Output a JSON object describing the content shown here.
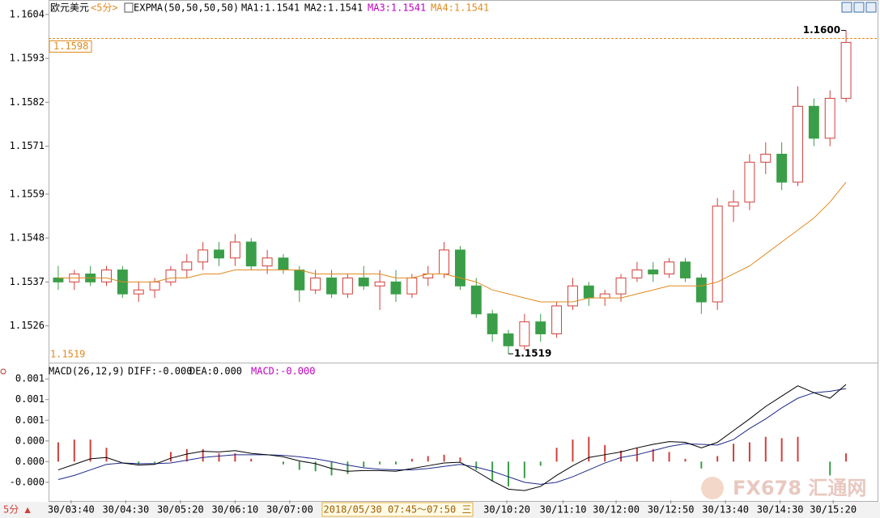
{
  "chart_data": [
    {
      "type": "candlestick",
      "title": "欧元美元",
      "period": "<5分>",
      "indicator": "EXPMA(50,50,50,50)",
      "ma_labels": [
        "MA1:1.1541",
        "MA2:1.1541",
        "MA3:1.1541",
        "MA4:1.1541"
      ],
      "ma_colors": [
        "#000000",
        "#000000",
        "#c000c0",
        "#e08a1e"
      ],
      "up_color": "#d0403a",
      "down_color": "#3a9e48",
      "expma_color": "#e08a1e",
      "xlim": [
        0,
        50
      ],
      "ylim": [
        1.1517,
        1.1606
      ],
      "yticks": [
        1.1604,
        1.1593,
        1.1582,
        1.1571,
        1.1559,
        1.1548,
        1.1537,
        1.1526
      ],
      "last_price": 1.1598,
      "range_low": 1.1519,
      "high_marker": {
        "value": 1.16,
        "label": "1.1600"
      },
      "low_marker": 1.1519,
      "open": [
        1.1538,
        1.1537,
        1.1539,
        1.1537,
        1.154,
        1.1534,
        1.1535,
        1.1537,
        1.154,
        1.1542,
        1.1545,
        1.1543,
        1.1547,
        1.1541,
        1.1543,
        1.154,
        1.1535,
        1.1538,
        1.1534,
        1.1538,
        1.1536,
        1.1537,
        1.1534,
        1.1538,
        1.1539,
        1.1545,
        1.1536,
        1.1529,
        1.1524,
        1.1521,
        1.1527,
        1.1524,
        1.1531,
        1.1536,
        1.1533,
        1.1534,
        1.1538,
        1.154,
        1.1539,
        1.1542,
        1.1538,
        1.1532,
        1.1556,
        1.1557,
        1.1567,
        1.1569,
        1.1562,
        1.1581,
        1.1573,
        1.1583
      ],
      "high": [
        1.1541,
        1.154,
        1.1541,
        1.1541,
        1.1541,
        1.1537,
        1.1538,
        1.1541,
        1.1544,
        1.1547,
        1.1547,
        1.1549,
        1.1548,
        1.1545,
        1.1544,
        1.1541,
        1.154,
        1.154,
        1.1539,
        1.1541,
        1.154,
        1.154,
        1.1539,
        1.1541,
        1.1547,
        1.1546,
        1.1538,
        1.153,
        1.1525,
        1.1529,
        1.1529,
        1.1532,
        1.1538,
        1.1537,
        1.1535,
        1.1539,
        1.1542,
        1.1542,
        1.1543,
        1.1543,
        1.1539,
        1.1558,
        1.156,
        1.1569,
        1.1572,
        1.1572,
        1.1586,
        1.1583,
        1.1585,
        1.16
      ],
      "low": [
        1.1535,
        1.1535,
        1.1536,
        1.1536,
        1.1533,
        1.1532,
        1.1533,
        1.1536,
        1.1538,
        1.154,
        1.1541,
        1.1541,
        1.154,
        1.1539,
        1.1539,
        1.1532,
        1.1534,
        1.1533,
        1.1533,
        1.1535,
        1.153,
        1.1532,
        1.1533,
        1.1536,
        1.1538,
        1.1535,
        1.1528,
        1.1522,
        1.1519,
        1.152,
        1.1522,
        1.1523,
        1.153,
        1.1531,
        1.1531,
        1.1532,
        1.1537,
        1.1537,
        1.1538,
        1.1537,
        1.1529,
        1.153,
        1.1552,
        1.1555,
        1.1564,
        1.156,
        1.1561,
        1.1571,
        1.1571,
        1.1582
      ],
      "close": [
        1.1537,
        1.1539,
        1.1537,
        1.154,
        1.1534,
        1.1535,
        1.1537,
        1.154,
        1.1542,
        1.1545,
        1.1543,
        1.1547,
        1.1541,
        1.1543,
        1.154,
        1.1535,
        1.1538,
        1.1534,
        1.1538,
        1.1536,
        1.1537,
        1.1534,
        1.1538,
        1.1539,
        1.1545,
        1.1536,
        1.1529,
        1.1524,
        1.1521,
        1.1527,
        1.1524,
        1.1531,
        1.1536,
        1.1533,
        1.1534,
        1.1538,
        1.154,
        1.1539,
        1.1542,
        1.1538,
        1.1532,
        1.1556,
        1.1557,
        1.1567,
        1.1569,
        1.1562,
        1.1581,
        1.1573,
        1.1583,
        1.1597
      ],
      "expma": [
        1.1538,
        1.1538,
        1.1538,
        1.1538,
        1.1537,
        1.1537,
        1.1537,
        1.1538,
        1.1538,
        1.1539,
        1.1539,
        1.154,
        1.154,
        1.154,
        1.154,
        1.154,
        1.1539,
        1.1539,
        1.1539,
        1.1539,
        1.1539,
        1.1538,
        1.1538,
        1.1539,
        1.1539,
        1.1538,
        1.1537,
        1.1535,
        1.1534,
        1.1533,
        1.1532,
        1.1532,
        1.1532,
        1.1533,
        1.1533,
        1.1533,
        1.1534,
        1.1535,
        1.1536,
        1.1536,
        1.1536,
        1.1537,
        1.1539,
        1.1541,
        1.1544,
        1.1547,
        1.155,
        1.1553,
        1.1557,
        1.1562
      ]
    },
    {
      "type": "macd",
      "title": "MACD(26,12,9)",
      "readouts": [
        "DIFF:-0.000",
        "DEA:0.000",
        "MACD:-0.000"
      ],
      "readout_colors": [
        "#000000",
        "#000000",
        "#c000c0"
      ],
      "diff_color": "#000000",
      "dea_color": "#1f2a8a",
      "up_color": "#d0403a",
      "down_color": "#3a9e48",
      "xlim": [
        0,
        50
      ],
      "ylim": [
        -0.00056,
        0.00139
      ],
      "yticks": [
        {
          "value": 0.0012,
          "label": "0.001"
        },
        {
          "value": 0.0009,
          "label": "0.001"
        },
        {
          "value": 0.0006,
          "label": "0.001"
        },
        {
          "value": 0.0003,
          "label": "0.000"
        },
        {
          "value": 0,
          "label": "0.000"
        },
        {
          "value": -0.0003,
          "label": "-0.000"
        }
      ],
      "xticks": [
        {
          "value": 1.3,
          "label": "30/03:40"
        },
        {
          "value": 4.7,
          "label": "30/04:30"
        },
        {
          "value": 8.1,
          "label": "30/05:20"
        },
        {
          "value": 11.5,
          "label": "30/06:10"
        },
        {
          "value": 14.9,
          "label": "30/07:00"
        },
        {
          "value": 28.4,
          "label": "30/10:20"
        },
        {
          "value": 31.9,
          "label": "30/11:10"
        },
        {
          "value": 35.2,
          "label": "30/12:00"
        },
        {
          "value": 38.6,
          "label": "30/12:50"
        },
        {
          "value": 42.0,
          "label": "30/13:40"
        },
        {
          "value": 45.4,
          "label": "30/14:30"
        },
        {
          "value": 48.7,
          "label": "30/15:20"
        }
      ],
      "cursor": {
        "value": 21.6,
        "label": "2018/05/30 07:45～07:50 三"
      },
      "diff": [
        -0.00012,
        -4e-05,
        4e-05,
        6e-05,
        -2e-05,
        -5e-05,
        -4e-05,
        5e-05,
        0.00011,
        0.00015,
        0.00014,
        0.00016,
        0.00012,
        0.0001,
        7e-05,
        1e-05,
        -3e-05,
        -0.0001,
        -0.00014,
        -0.00013,
        -0.00013,
        -0.00014,
        -0.0001,
        -6e-05,
        -2e-05,
        -1e-05,
        -0.00014,
        -0.00028,
        -0.0004,
        -0.00042,
        -0.00036,
        -0.0002,
        -6e-05,
        6e-05,
        0.0001,
        0.00014,
        0.0002,
        0.00025,
        0.00029,
        0.00028,
        0.0002,
        0.00028,
        0.00045,
        0.00062,
        0.0008,
        0.00095,
        0.0011,
        0.001,
        0.00092,
        0.00112
      ],
      "dea": [
        -0.00026,
        -0.0002,
        -0.00012,
        -4e-05,
        -2e-05,
        -3e-05,
        -3e-05,
        -2e-05,
        2e-05,
        6e-05,
        8e-05,
        0.0001,
        0.0001,
        0.0001,
        9e-05,
        7e-05,
        4e-05,
        0,
        -5e-05,
        -9e-05,
        -0.00011,
        -0.00012,
        -0.00012,
        -0.0001,
        -7e-05,
        -4e-05,
        -8e-05,
        -0.00014,
        -0.00022,
        -0.0003,
        -0.00033,
        -0.0003,
        -0.00022,
        -0.00012,
        -2e-05,
        6e-05,
        0.0001,
        0.00016,
        0.00022,
        0.00026,
        0.00025,
        0.00024,
        0.00032,
        0.00048,
        0.00062,
        0.00078,
        0.00092,
        0.001,
        0.00102,
        0.00106
      ],
      "hist": [
        0.00028,
        0.00032,
        0.00032,
        0.0002,
        0,
        -4e-05,
        -2e-05,
        0.00014,
        0.00018,
        0.00018,
        0.00012,
        0.00012,
        4e-05,
        0,
        -4e-05,
        -0.00012,
        -0.00014,
        -0.0002,
        -0.00018,
        -8e-05,
        -4e-05,
        -4e-05,
        4e-05,
        8e-05,
        0.0001,
        6e-05,
        -0.00012,
        -0.00028,
        -0.00036,
        -0.00024,
        -6e-05,
        0.0002,
        0.00032,
        0.00036,
        0.00024,
        0.00016,
        0.0002,
        0.00018,
        0.00014,
        4e-05,
        -0.0001,
        8e-05,
        0.00026,
        0.00028,
        0.00036,
        0.00034,
        0.00036,
        0,
        -0.0002,
        0.00012
      ]
    }
  ],
  "period_button": "5分 ▲",
  "watermark": "FX678 汇通网"
}
